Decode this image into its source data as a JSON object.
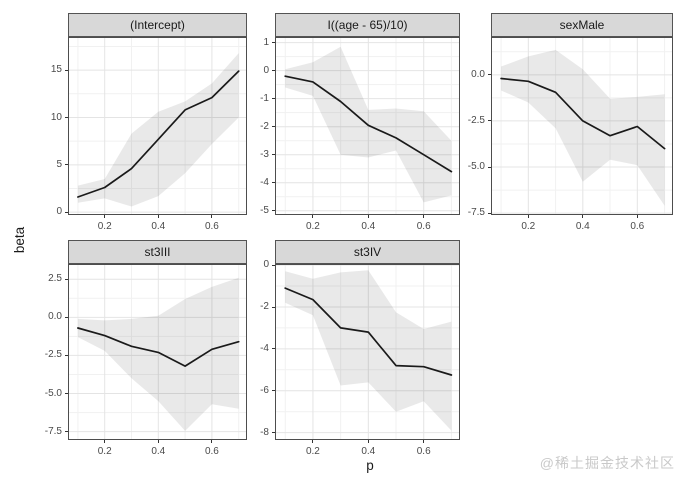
{
  "watermark": "@稀土掘金技术社区",
  "colors": {
    "strip_bg": "#d8d8d8",
    "strip_border": "#545454",
    "panel_border": "#4d4d4d",
    "grid_major": "#e4e4e4",
    "grid_minor": "#f1f1f1",
    "ribbon": "rgba(0,0,0,0.085)",
    "line": "#1a1a1a",
    "tick_mark": "#333333",
    "tick_text": "#4a4a4a",
    "axis_title_text": "#1a1a1a",
    "watermark_text": "#c9c9c9",
    "panel_bg": "#ffffff"
  },
  "chart_data": {
    "type": "line",
    "title": "",
    "xlabel": "p",
    "ylabel": "beta",
    "legend": "none",
    "grid": "major and minor, light gray on white (theme_bw)",
    "x": [
      0.1,
      0.2,
      0.3,
      0.4,
      0.5,
      0.6,
      0.7
    ],
    "xlim": [
      0.063,
      0.731
    ],
    "xticks": [
      0.2,
      0.4,
      0.6
    ],
    "xtick_labels": [
      "0.2",
      "0.4",
      "0.6"
    ],
    "facets": [
      {
        "title": "(Intercept)",
        "ylim": [
          -0.3,
          18.5
        ],
        "yticks": [
          0,
          5,
          10,
          15
        ],
        "ytick_labels": [
          "0",
          "5",
          "10",
          "15"
        ],
        "line": [
          1.6,
          2.6,
          4.6,
          7.7,
          10.8,
          12.1,
          14.9
        ],
        "upper": [
          2.8,
          3.5,
          8.3,
          10.6,
          11.7,
          13.6,
          16.8
        ],
        "lower": [
          1.0,
          1.45,
          0.6,
          1.7,
          4.1,
          7.2,
          10.0
        ]
      },
      {
        "title": "I((age - 65)/10)",
        "ylim": [
          -5.15,
          1.2
        ],
        "yticks": [
          -5,
          -4,
          -3,
          -2,
          -1,
          0,
          1
        ],
        "ytick_labels": [
          "-5",
          "-4",
          "-3",
          "-2",
          "-1",
          "0",
          "1"
        ],
        "line": [
          -0.2,
          -0.4,
          -1.1,
          -1.95,
          -2.4,
          -3.0,
          -3.6
        ],
        "upper": [
          0.05,
          0.3,
          0.85,
          -1.4,
          -1.35,
          -1.45,
          -2.5
        ],
        "lower": [
          -0.6,
          -0.9,
          -3.0,
          -3.1,
          -2.85,
          -4.7,
          -4.45
        ]
      },
      {
        "title": "sexMale",
        "ylim": [
          -7.6,
          2.05
        ],
        "yticks": [
          -7.5,
          -5.0,
          -2.5,
          0.0
        ],
        "ytick_labels": [
          "-7.5",
          "-5.0",
          "-2.5",
          "0.0"
        ],
        "line": [
          -0.2,
          -0.35,
          -0.95,
          -2.5,
          -3.3,
          -2.8,
          -4.0
        ],
        "upper": [
          0.45,
          1.0,
          1.35,
          0.3,
          -1.3,
          -1.2,
          -1.05
        ],
        "lower": [
          -0.85,
          -1.5,
          -2.9,
          -5.8,
          -4.6,
          -4.9,
          -7.1
        ]
      },
      {
        "title": "st3III",
        "ylim": [
          -8.05,
          3.5
        ],
        "yticks": [
          -7.5,
          -5.0,
          -2.5,
          0.0,
          2.5
        ],
        "ytick_labels": [
          "-7.5",
          "-5.0",
          "-2.5",
          "0.0",
          "2.5"
        ],
        "line": [
          -0.7,
          -1.2,
          -1.9,
          -2.3,
          -3.2,
          -2.1,
          -1.6
        ],
        "upper": [
          -0.1,
          -0.2,
          -0.1,
          0.1,
          1.2,
          2.0,
          2.6
        ],
        "lower": [
          -1.3,
          -2.2,
          -4.0,
          -5.5,
          -7.45,
          -5.7,
          -6.0
        ]
      },
      {
        "title": "st3IV",
        "ylim": [
          -8.35,
          0.05
        ],
        "yticks": [
          -8,
          -6,
          -4,
          -2,
          0
        ],
        "ytick_labels": [
          "-8",
          "-6",
          "-4",
          "-2",
          "0"
        ],
        "line": [
          -1.1,
          -1.65,
          -3.0,
          -3.2,
          -4.8,
          -4.85,
          -5.25
        ],
        "upper": [
          -0.3,
          -0.65,
          -0.35,
          -0.25,
          -2.25,
          -3.05,
          -2.7
        ],
        "lower": [
          -1.8,
          -2.4,
          -5.75,
          -5.6,
          -7.0,
          -6.5,
          -7.9
        ]
      }
    ]
  }
}
